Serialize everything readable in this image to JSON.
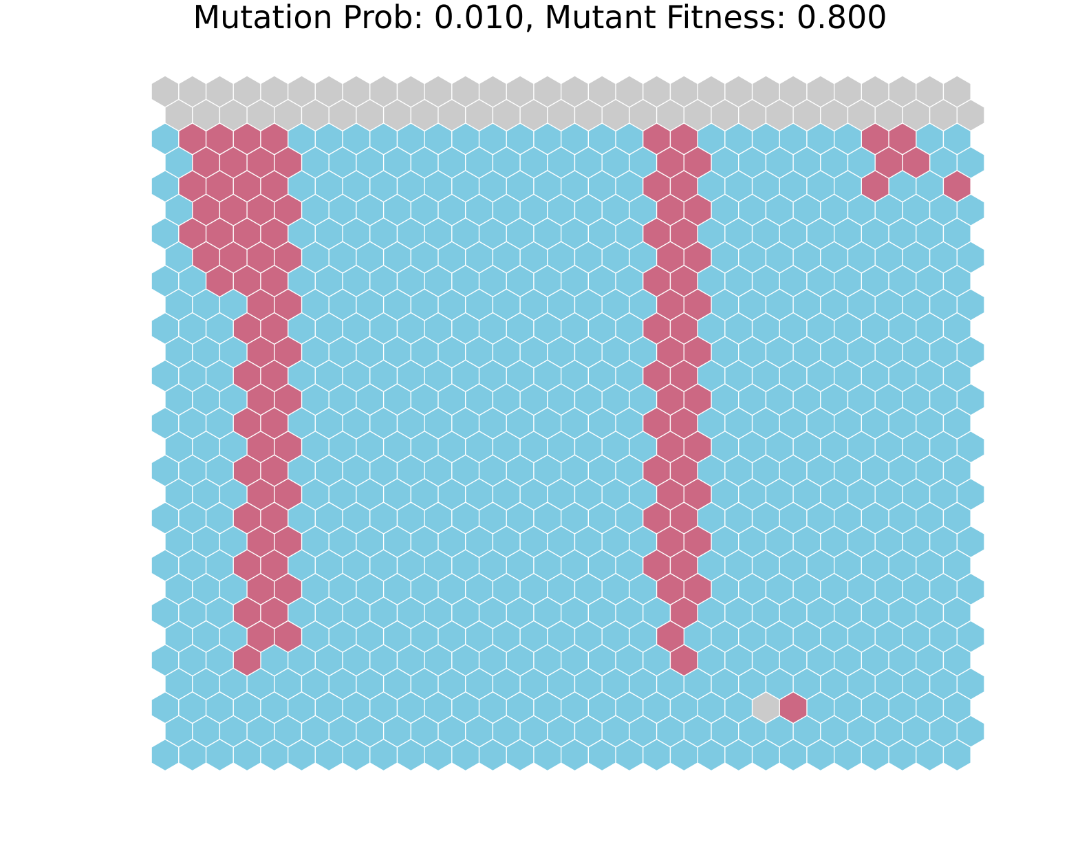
{
  "chart_data": {
    "type": "heatmap",
    "title": "Mutation Prob: 0.010, Mutant Fitness: 0.800",
    "grid": false,
    "columns": 30,
    "rows": 29,
    "row_offset": "odd rows shifted right by half a cell",
    "states": {
      "0": {
        "label": "",
        "color": "#7ecae2"
      },
      "1": {
        "label": "",
        "color": "#cc6883"
      },
      "2": {
        "label": "",
        "color": "#cbcbcb"
      }
    },
    "edge_color": "#ffffff",
    "cells": [
      "222222222222222222222222222222",
      "222222222222222222222222222222",
      "011110000000000000110000001100",
      "011110000000000000110000001100",
      "011110000000000000110000001001",
      "011110000000000000110000000000",
      "011110000000000000110000000000",
      "011110000000000000110000000000",
      "001110000000000000110000000000",
      "000110000000000000110000000000",
      "000110000000000000110000000000",
      "000110000000000000110000000000",
      "000110000000000000110000000000",
      "000110000000000000110000000000",
      "000110000000000000110000000000",
      "000110000000000000110000000000",
      "000110000000000000110000000000",
      "000110000000000000110000000000",
      "000110000000000000110000000000",
      "000110000000000000110000000000",
      "000110000000000000110000000000",
      "000110000000000000110000000000",
      "000110000000000000010000000000",
      "000110000000000000100000000000",
      "000100000000000000010000000000",
      "000000000000000000000000000000",
      "000000000000000000000021000000",
      "000000000000000000000000000000",
      "000000000000000000000000000000"
    ]
  }
}
